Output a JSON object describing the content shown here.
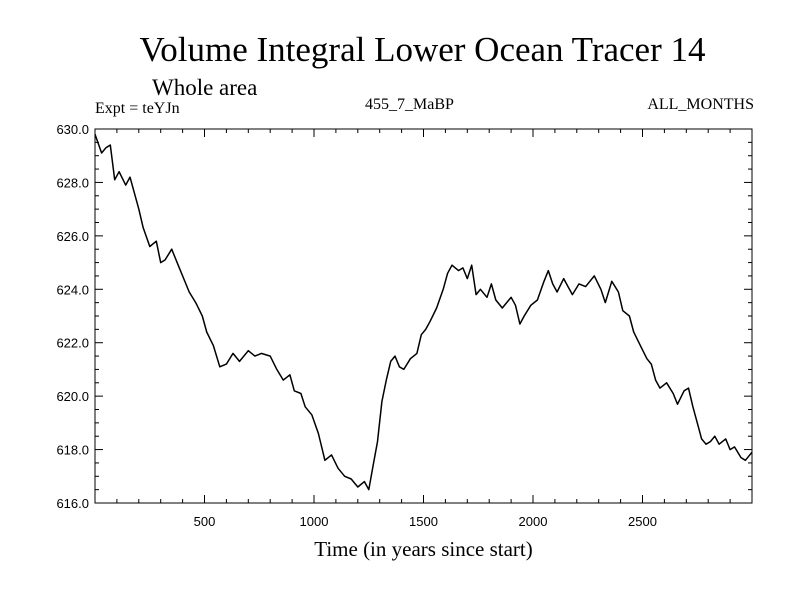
{
  "chart_data": {
    "type": "line",
    "title": "Volume Integral Lower Ocean Tracer 14",
    "subtitle": "Whole area",
    "experiment_label": "Expt = teYJn",
    "period_label": "455_7_MaBP",
    "months_label": "ALL_MONTHS",
    "xlabel": "Time (in years since start)",
    "ylabel": "",
    "xlim": [
      0,
      3000
    ],
    "ylim": [
      616.0,
      630.0
    ],
    "x_ticks": [
      500,
      1000,
      1500,
      2000,
      2500
    ],
    "y_ticks": [
      "616.0",
      "618.0",
      "620.0",
      "622.0",
      "624.0",
      "626.0",
      "628.0",
      "630.0"
    ],
    "series": [
      {
        "name": "Tracer 14",
        "color": "#000000",
        "points": [
          [
            0,
            629.8
          ],
          [
            30,
            629.1
          ],
          [
            50,
            629.3
          ],
          [
            70,
            629.4
          ],
          [
            90,
            628.1
          ],
          [
            110,
            628.4
          ],
          [
            140,
            627.9
          ],
          [
            160,
            628.2
          ],
          [
            180,
            627.6
          ],
          [
            200,
            627.0
          ],
          [
            220,
            626.3
          ],
          [
            250,
            625.6
          ],
          [
            280,
            625.8
          ],
          [
            300,
            625.0
          ],
          [
            320,
            625.1
          ],
          [
            350,
            625.5
          ],
          [
            380,
            624.9
          ],
          [
            400,
            624.5
          ],
          [
            430,
            623.9
          ],
          [
            460,
            623.5
          ],
          [
            490,
            623.0
          ],
          [
            510,
            622.4
          ],
          [
            540,
            621.9
          ],
          [
            570,
            621.1
          ],
          [
            600,
            621.2
          ],
          [
            630,
            621.6
          ],
          [
            660,
            621.3
          ],
          [
            700,
            621.7
          ],
          [
            730,
            621.5
          ],
          [
            760,
            621.6
          ],
          [
            800,
            621.5
          ],
          [
            830,
            621.0
          ],
          [
            860,
            620.6
          ],
          [
            890,
            620.8
          ],
          [
            910,
            620.2
          ],
          [
            940,
            620.1
          ],
          [
            960,
            619.6
          ],
          [
            990,
            619.3
          ],
          [
            1020,
            618.6
          ],
          [
            1050,
            617.6
          ],
          [
            1080,
            617.8
          ],
          [
            1110,
            617.3
          ],
          [
            1140,
            617.0
          ],
          [
            1170,
            616.9
          ],
          [
            1200,
            616.6
          ],
          [
            1230,
            616.8
          ],
          [
            1250,
            616.5
          ],
          [
            1270,
            617.4
          ],
          [
            1290,
            618.3
          ],
          [
            1310,
            619.8
          ],
          [
            1330,
            620.6
          ],
          [
            1350,
            621.3
          ],
          [
            1370,
            621.5
          ],
          [
            1390,
            621.1
          ],
          [
            1410,
            621.0
          ],
          [
            1440,
            621.4
          ],
          [
            1470,
            621.6
          ],
          [
            1490,
            622.3
          ],
          [
            1510,
            622.5
          ],
          [
            1530,
            622.8
          ],
          [
            1560,
            623.3
          ],
          [
            1590,
            624.0
          ],
          [
            1610,
            624.6
          ],
          [
            1630,
            624.9
          ],
          [
            1660,
            624.7
          ],
          [
            1680,
            624.8
          ],
          [
            1700,
            624.4
          ],
          [
            1720,
            624.9
          ],
          [
            1740,
            623.8
          ],
          [
            1760,
            624.0
          ],
          [
            1790,
            623.7
          ],
          [
            1810,
            624.2
          ],
          [
            1830,
            623.6
          ],
          [
            1860,
            623.3
          ],
          [
            1880,
            623.5
          ],
          [
            1900,
            623.7
          ],
          [
            1920,
            623.4
          ],
          [
            1940,
            622.7
          ],
          [
            1960,
            623.0
          ],
          [
            1990,
            623.4
          ],
          [
            2020,
            623.6
          ],
          [
            2050,
            624.3
          ],
          [
            2070,
            624.7
          ],
          [
            2090,
            624.2
          ],
          [
            2110,
            623.9
          ],
          [
            2140,
            624.4
          ],
          [
            2160,
            624.1
          ],
          [
            2180,
            623.8
          ],
          [
            2210,
            624.2
          ],
          [
            2240,
            624.1
          ],
          [
            2260,
            624.3
          ],
          [
            2280,
            624.5
          ],
          [
            2310,
            624.0
          ],
          [
            2330,
            623.5
          ],
          [
            2360,
            624.3
          ],
          [
            2390,
            623.9
          ],
          [
            2410,
            623.2
          ],
          [
            2440,
            623.0
          ],
          [
            2460,
            622.4
          ],
          [
            2490,
            621.9
          ],
          [
            2520,
            621.4
          ],
          [
            2540,
            621.2
          ],
          [
            2560,
            620.6
          ],
          [
            2580,
            620.3
          ],
          [
            2610,
            620.5
          ],
          [
            2640,
            620.1
          ],
          [
            2660,
            619.7
          ],
          [
            2690,
            620.2
          ],
          [
            2710,
            620.3
          ],
          [
            2730,
            619.6
          ],
          [
            2750,
            619.0
          ],
          [
            2770,
            618.4
          ],
          [
            2790,
            618.2
          ],
          [
            2810,
            618.3
          ],
          [
            2830,
            618.5
          ],
          [
            2850,
            618.2
          ],
          [
            2880,
            618.4
          ],
          [
            2900,
            618.0
          ],
          [
            2920,
            618.1
          ],
          [
            2950,
            617.7
          ],
          [
            2970,
            617.6
          ],
          [
            3000,
            617.9
          ]
        ]
      }
    ]
  }
}
